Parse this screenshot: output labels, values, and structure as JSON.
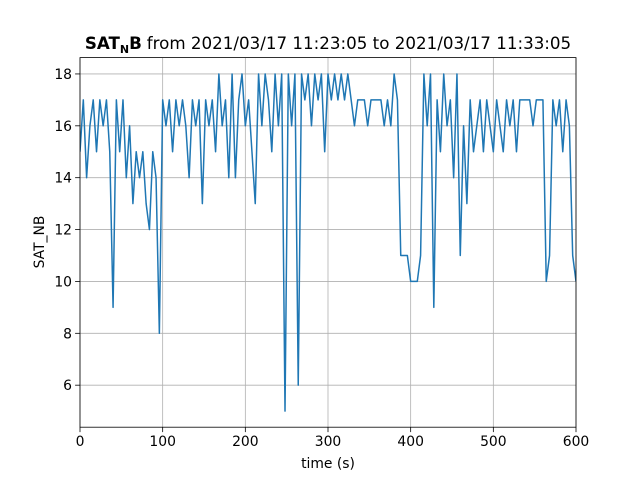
{
  "chart_data": {
    "type": "line",
    "title": {
      "bold": "SAT",
      "subscript": "N",
      "bold_end": "B",
      "rest": "from 2021/03/17 11:23:05 to 2021/03/17 11:33:05"
    },
    "x_label": "time (s)",
    "y_label": "SAT_NB",
    "xlim": [
      0,
      600
    ],
    "ylim": [
      4.38,
      18.63
    ],
    "xticks": [
      0,
      100,
      200,
      300,
      400,
      500,
      600
    ],
    "yticks": [
      6,
      8,
      10,
      12,
      14,
      16,
      18
    ],
    "grid": true,
    "series": [
      {
        "name": "SAT_NB",
        "color": "#1f77b4",
        "x": [
          0,
          4,
          8,
          12,
          16,
          20,
          24,
          28,
          32,
          36,
          40,
          44,
          48,
          52,
          56,
          60,
          64,
          68,
          72,
          76,
          80,
          84,
          88,
          92,
          96,
          100,
          104,
          108,
          112,
          116,
          120,
          124,
          128,
          132,
          136,
          140,
          144,
          148,
          152,
          156,
          160,
          164,
          168,
          172,
          176,
          180,
          184,
          188,
          192,
          196,
          200,
          204,
          208,
          212,
          216,
          220,
          224,
          228,
          232,
          236,
          240,
          244,
          248,
          252,
          256,
          260,
          264,
          268,
          272,
          276,
          280,
          284,
          288,
          292,
          296,
          300,
          304,
          308,
          312,
          316,
          320,
          324,
          328,
          332,
          336,
          340,
          344,
          348,
          352,
          356,
          360,
          364,
          368,
          372,
          376,
          380,
          384,
          388,
          392,
          396,
          400,
          404,
          408,
          412,
          416,
          420,
          424,
          428,
          432,
          436,
          440,
          444,
          448,
          452,
          456,
          460,
          464,
          468,
          472,
          476,
          480,
          484,
          488,
          492,
          496,
          500,
          504,
          508,
          512,
          516,
          520,
          524,
          528,
          532,
          536,
          540,
          544,
          548,
          552,
          556,
          560,
          564,
          568,
          572,
          576,
          580,
          584,
          588,
          592,
          596,
          600
        ],
        "values": [
          15,
          17,
          14,
          16,
          17,
          15,
          17,
          16,
          17,
          15,
          9,
          17,
          15,
          17,
          14,
          16,
          13,
          15,
          14,
          15,
          13,
          12,
          15,
          14,
          8,
          17,
          16,
          17,
          15,
          17,
          16,
          17,
          16,
          14,
          17,
          16,
          17,
          13,
          17,
          16,
          17,
          15,
          18,
          16,
          17,
          14,
          18,
          14,
          17,
          18,
          16,
          17,
          15,
          13,
          18,
          16,
          18,
          17,
          15,
          18,
          16,
          18,
          5,
          18,
          16,
          18,
          6,
          18,
          17,
          18,
          16,
          18,
          17,
          18,
          15,
          18,
          17,
          18,
          17,
          18,
          17,
          18,
          17,
          16,
          17,
          17,
          17,
          16,
          17,
          17,
          17,
          17,
          16,
          17,
          16,
          18,
          17,
          11,
          11,
          11,
          10,
          10,
          10,
          11,
          18,
          16,
          18,
          9,
          17,
          15,
          18,
          16,
          17,
          14,
          18,
          11,
          16,
          13,
          17,
          15,
          16,
          17,
          15,
          17,
          16,
          15,
          17,
          16,
          15,
          17,
          16,
          17,
          15,
          17,
          17,
          17,
          17,
          16,
          17,
          17,
          17,
          10,
          11,
          17,
          16,
          17,
          15,
          17,
          16,
          11,
          10
        ]
      }
    ]
  }
}
